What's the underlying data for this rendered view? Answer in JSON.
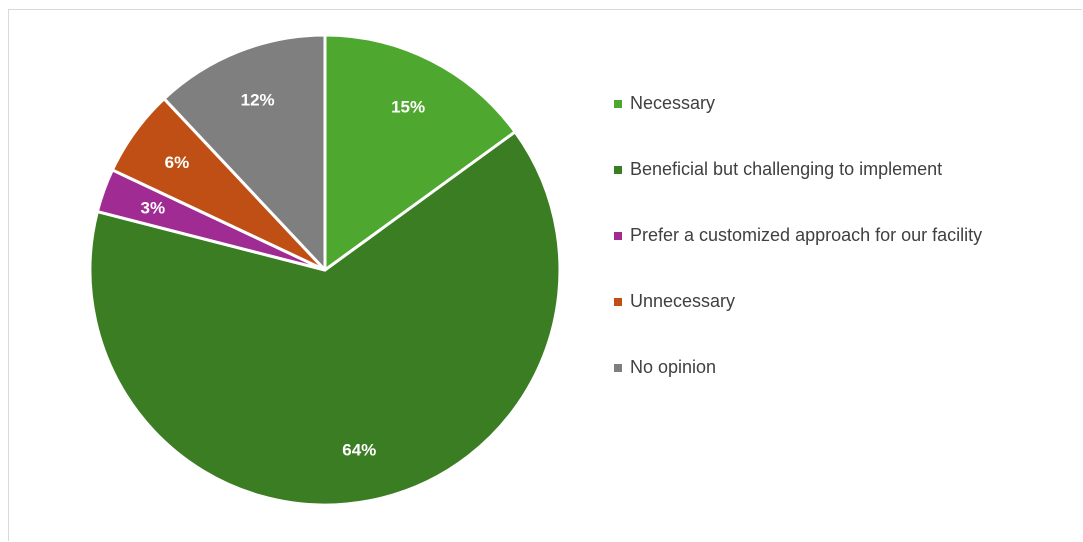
{
  "chart_data": {
    "type": "pie",
    "title": "",
    "legend_position": "right",
    "slices": [
      {
        "name": "Necessary",
        "value": 15,
        "label": "15%",
        "color": "#4ea72e"
      },
      {
        "name": "Beneficial but challenging to implement",
        "value": 64,
        "label": "64%",
        "color": "#3b7d23"
      },
      {
        "name": "Prefer a customized approach for our facility",
        "value": 3,
        "label": "3%",
        "color": "#a02b93"
      },
      {
        "name": "Unnecessary",
        "value": 6,
        "label": "6%",
        "color": "#c04f15"
      },
      {
        "name": "No opinion",
        "value": 12,
        "label": "12%",
        "color": "#7f7f7f"
      }
    ]
  }
}
